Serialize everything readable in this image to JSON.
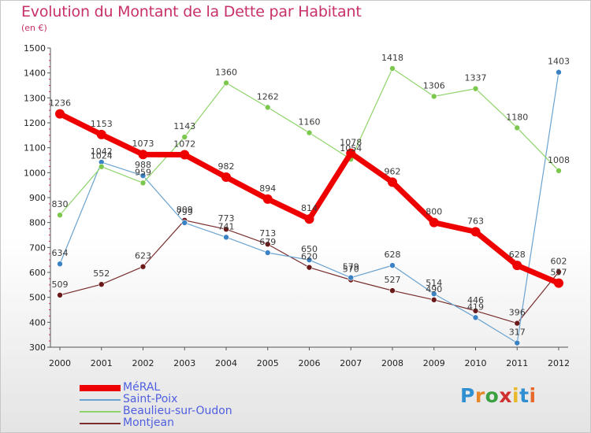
{
  "header": {
    "title": "Evolution du Montant de la Dette par Habitant",
    "subtitle": "(en €)"
  },
  "logo": {
    "letters": [
      "P",
      "r",
      "o",
      "x",
      "i",
      "t",
      "i"
    ],
    "colors": [
      "#2f8fd0",
      "#e8872a",
      "#3aa040",
      "#d0302e",
      "#e8b92a",
      "#2f8fd0",
      "#e86a2a"
    ]
  },
  "colors": {
    "title": "#c8306a",
    "legend_text": "#4f5fe0",
    "grid": "#cfcfcf",
    "axis": "#555555"
  },
  "chart_data": {
    "type": "line",
    "title": "Evolution du Montant de la Dette par Habitant",
    "subtitle": "(en €)",
    "xlabel": "",
    "ylabel": "",
    "x": [
      "2000",
      "2001",
      "2002",
      "2003",
      "2004",
      "2005",
      "2006",
      "2007",
      "2008",
      "2009",
      "2010",
      "2011",
      "2012"
    ],
    "ylim": [
      300,
      1500
    ],
    "yticks": [
      300,
      400,
      500,
      600,
      700,
      800,
      900,
      1000,
      1100,
      1200,
      1300,
      1400,
      1500
    ],
    "grid": false,
    "legend": "bottom-left",
    "series": [
      {
        "name": "MéRAL",
        "color": "#ee0000",
        "width": 7,
        "marker_radius": 6,
        "values": [
          1236,
          1153,
          1073,
          1072,
          982,
          894,
          814,
          1078,
          962,
          800,
          763,
          628,
          557
        ],
        "labels": [
          "1236",
          "1153",
          "1073",
          "1072",
          "982",
          "894",
          "814",
          "1078",
          "962",
          "800",
          "763",
          "628",
          "557"
        ]
      },
      {
        "name": "Saint-Poix",
        "color": "#6aa3d0",
        "marker_color": "#3b82c4",
        "width": 1.2,
        "marker_radius": 3.5,
        "values": [
          634,
          1042,
          988,
          799,
          741,
          679,
          650,
          579,
          628,
          514,
          419,
          317,
          1403
        ],
        "labels": [
          "634",
          "1042",
          "988",
          "799",
          "741",
          "679",
          "650",
          "579",
          "628",
          "514",
          "419",
          "317",
          "1403"
        ]
      },
      {
        "name": "Beaulieu-sur-Oudon",
        "color": "#8fd46a",
        "marker_color": "#7cc84e",
        "width": 1.2,
        "marker_radius": 3.5,
        "values": [
          830,
          1024,
          959,
          1143,
          1360,
          1262,
          1160,
          1054,
          1418,
          1306,
          1337,
          1180,
          1008
        ],
        "labels": [
          "830",
          "1024",
          "959",
          "1143",
          "1360",
          "1262",
          "1160",
          "1054",
          "1418",
          "1306",
          "1337",
          "1180",
          "1008"
        ]
      },
      {
        "name": "Montjean",
        "color": "#7a2e2e",
        "marker_color": "#6b1a1a",
        "width": 1.2,
        "marker_radius": 3.5,
        "values": [
          509,
          552,
          623,
          809,
          773,
          713,
          620,
          570,
          527,
          490,
          446,
          396,
          602
        ],
        "labels": [
          "509",
          "552",
          "623",
          "809",
          "773",
          "713",
          "620",
          "570",
          "527",
          "490",
          "446",
          "396",
          "602"
        ]
      }
    ]
  }
}
